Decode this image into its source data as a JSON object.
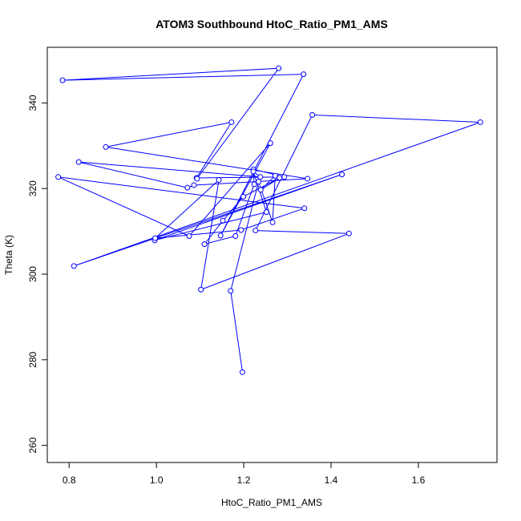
{
  "chart_data": {
    "type": "line",
    "title": "ATOM3 Southbound HtoC_Ratio_PM1_AMS",
    "xlabel": "HtoC_Ratio_PM1_AMS",
    "ylabel": "Theta (K)",
    "xlim": [
      0.75,
      1.78
    ],
    "ylim": [
      256,
      353
    ],
    "x_ticks": [
      0.8,
      1.0,
      1.2,
      1.4,
      1.6
    ],
    "y_ticks": [
      260,
      280,
      300,
      320,
      340
    ],
    "x_tick_labels": [
      "0.8",
      "1.0",
      "1.2",
      "1.4",
      "1.6"
    ],
    "y_tick_labels": [
      "260",
      "280",
      "300",
      "320",
      "340"
    ],
    "marker": "open-circle",
    "color": "#0000ff",
    "grid": false,
    "series": [
      {
        "x": [
          1.197,
          1.17,
          1.234,
          1.266,
          1.272,
          1.239,
          1.282,
          1.199,
          1.152,
          1.11,
          1.181,
          1.224,
          1.222,
          1.293,
          1.092,
          1.172,
          0.884,
          1.346,
          1.086,
          1.071,
          0.822,
          1.238,
          1.222,
          1.252,
          0.996,
          1.425,
          0.811,
          1.742,
          1.357,
          1.227,
          1.441,
          1.102,
          1.143,
          0.997,
          1.194,
          1.339,
          0.775,
          1.075,
          1.261,
          1.147,
          1.337,
          0.785,
          1.28,
          1.093
        ],
        "y": [
          277.1,
          296.1,
          321.6,
          312.1,
          323.0,
          319.7,
          322.5,
          318.1,
          312.5,
          307.0,
          308.9,
          321.0,
          324.5,
          322.7,
          322.5,
          335.5,
          329.7,
          322.3,
          320.8,
          320.2,
          326.2,
          322.7,
          324.0,
          314.5,
          307.9,
          323.3,
          301.9,
          335.5,
          337.2,
          310.2,
          309.5,
          296.4,
          322.0,
          308.4,
          310.3,
          315.4,
          322.7,
          308.9,
          330.6,
          309.0,
          346.7,
          345.3,
          348.1,
          322.3
        ]
      }
    ]
  }
}
